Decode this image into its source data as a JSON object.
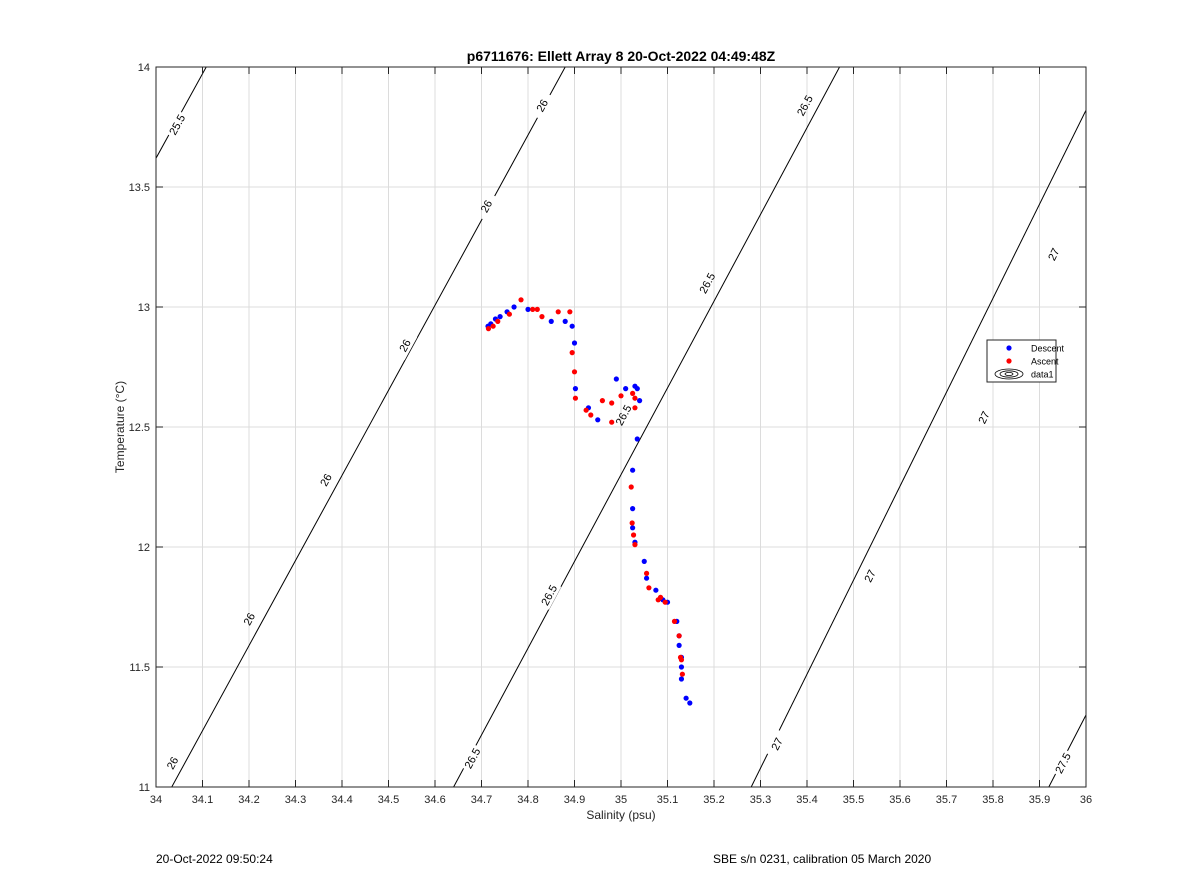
{
  "chart_data": {
    "type": "scatter",
    "title": "p6711676: Ellett Array 8 20-Oct-2022 04:49:48Z",
    "xlabel": "Salinity (psu)",
    "ylabel": "Temperature (°C)",
    "xlim": [
      34,
      36
    ],
    "ylim": [
      11,
      14
    ],
    "xticks": [
      "34",
      "34.1",
      "34.2",
      "34.3",
      "34.4",
      "34.5",
      "34.6",
      "34.7",
      "34.8",
      "34.9",
      "35",
      "35.1",
      "35.2",
      "35.3",
      "35.4",
      "35.5",
      "35.6",
      "35.7",
      "35.8",
      "35.9",
      "36"
    ],
    "yticks": [
      "11",
      "11.5",
      "12",
      "12.5",
      "13",
      "13.5",
      "14"
    ],
    "grid": true,
    "legend_position": "right",
    "series": [
      {
        "name": "Descent",
        "color": "#0000ff",
        "x": [
          34.714,
          34.72,
          34.73,
          34.74,
          34.755,
          34.77,
          34.8,
          34.85,
          34.88,
          34.895,
          34.9,
          34.902,
          34.99,
          35.01,
          35.03,
          35.035,
          35.04,
          34.93,
          34.95,
          35.035,
          35.025,
          35.025,
          35.025,
          35.03,
          35.05,
          35.055,
          35.075,
          35.09,
          35.1,
          35.12,
          35.125,
          35.125,
          35.13,
          35.13,
          35.13,
          35.14,
          35.148
        ],
        "y": [
          12.92,
          12.93,
          12.95,
          12.96,
          12.98,
          13.0,
          12.99,
          12.94,
          12.94,
          12.92,
          12.85,
          12.66,
          12.7,
          12.66,
          12.67,
          12.66,
          12.61,
          12.58,
          12.53,
          12.45,
          12.32,
          12.16,
          12.08,
          12.02,
          11.94,
          11.87,
          11.82,
          11.78,
          11.77,
          11.69,
          11.63,
          11.59,
          11.54,
          11.5,
          11.45,
          11.37,
          11.35
        ]
      },
      {
        "name": "Ascent",
        "color": "#ff0000",
        "x": [
          34.715,
          34.725,
          34.735,
          34.76,
          34.785,
          34.81,
          34.82,
          34.83,
          34.865,
          34.89,
          34.895,
          34.9,
          34.902,
          34.925,
          34.935,
          34.96,
          34.98,
          34.98,
          35.0,
          35.025,
          35.03,
          35.03,
          35.022,
          35.024,
          35.027,
          35.03,
          35.055,
          35.06,
          35.08,
          35.085,
          35.095,
          35.115,
          35.125,
          35.128,
          35.13,
          35.132
        ],
        "y": [
          12.91,
          12.92,
          12.94,
          12.97,
          13.03,
          12.99,
          12.99,
          12.96,
          12.98,
          12.98,
          12.81,
          12.73,
          12.62,
          12.57,
          12.55,
          12.61,
          12.6,
          12.52,
          12.63,
          12.64,
          12.58,
          12.62,
          12.25,
          12.1,
          12.05,
          12.01,
          11.89,
          11.83,
          11.78,
          11.79,
          11.77,
          11.69,
          11.63,
          11.54,
          11.53,
          11.47
        ]
      }
    ],
    "contours": [
      {
        "level": "25.5",
        "points": [
          [
            34.0,
            13.62
          ],
          [
            34.108,
            14.0
          ]
        ],
        "labels": [
          [
            34.045,
            13.76
          ]
        ]
      },
      {
        "level": "26",
        "points": [
          [
            34.0,
            10.88
          ],
          [
            34.88,
            14.0
          ]
        ],
        "labels": [
          [
            34.035,
            11.1
          ],
          [
            34.2,
            11.7
          ],
          [
            34.365,
            12.28
          ],
          [
            34.535,
            12.84
          ],
          [
            34.71,
            13.42
          ],
          [
            34.83,
            13.84
          ]
        ]
      },
      {
        "level": "26.5",
        "points": [
          [
            34.64,
            11.0
          ],
          [
            35.47,
            14.0
          ]
        ],
        "labels": [
          [
            34.68,
            11.12
          ],
          [
            34.845,
            11.8
          ],
          [
            35.005,
            12.55
          ],
          [
            35.185,
            13.1
          ],
          [
            35.395,
            13.84
          ]
        ]
      },
      {
        "level": "27",
        "points": [
          [
            35.28,
            11.0
          ],
          [
            36.0,
            13.82
          ]
        ],
        "labels": [
          [
            35.335,
            11.18
          ],
          [
            35.535,
            11.88
          ],
          [
            35.78,
            12.54
          ],
          [
            35.93,
            13.22
          ]
        ]
      },
      {
        "level": "27.5",
        "points": [
          [
            35.92,
            11.0
          ],
          [
            36.0,
            11.3
          ]
        ],
        "labels": [
          [
            35.95,
            11.1
          ]
        ]
      }
    ],
    "legend": [
      {
        "label": "Descent",
        "type": "dot",
        "color": "#0000ff"
      },
      {
        "label": "Ascent",
        "type": "dot",
        "color": "#ff0000"
      },
      {
        "label": "data1",
        "type": "contour",
        "color": "#000000"
      }
    ]
  },
  "footer": {
    "left": "20-Oct-2022 09:50:24",
    "right": "SBE s/n 0231, calibration 05 March 2020"
  }
}
